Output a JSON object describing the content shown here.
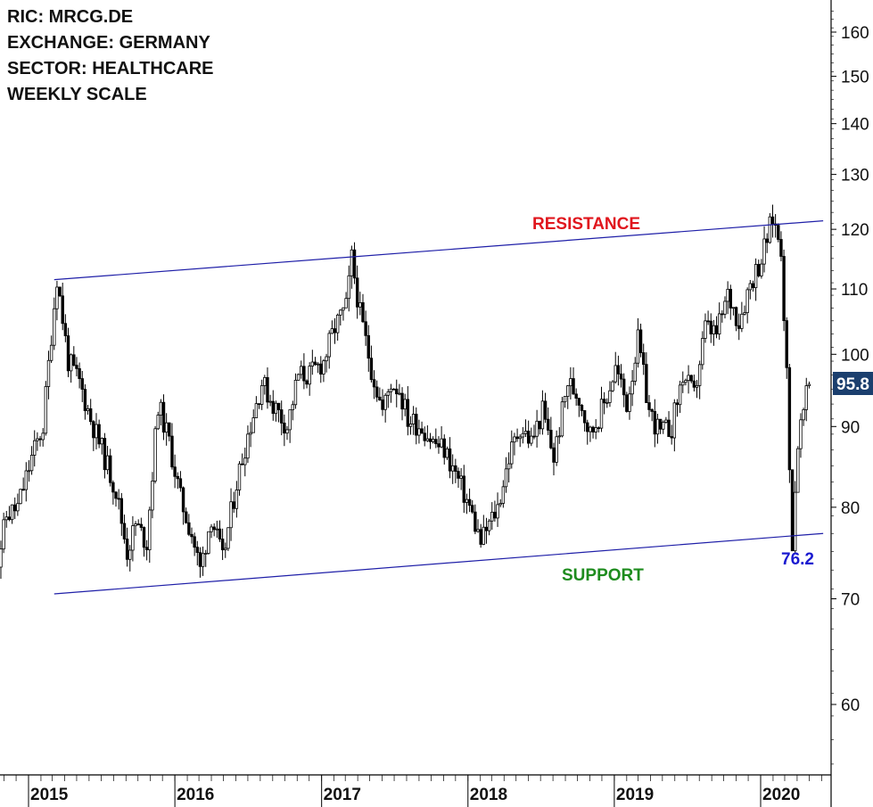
{
  "info": {
    "ric": "RIC: MRCG.DE",
    "exchange": "EXCHANGE: GERMANY",
    "sector": "SECTOR: HEALTHCARE",
    "scale": "WEEKLY SCALE"
  },
  "colors": {
    "candle": "#000000",
    "trendline": "#1f1fa8",
    "resistance_label": "#e0161d",
    "support_label": "#1e8c1e",
    "low_label": "#1a1ad0",
    "price_badge": "#1b3f6e"
  },
  "chart_data": {
    "type": "line",
    "series": [
      {
        "x": [
          "2014-10-03",
          "2014-11-07",
          "2014-12-05",
          "2015-01-09",
          "2015-02-06",
          "2015-02-27",
          "2015-03-13",
          "2015-04-10",
          "2015-05-08",
          "2015-06-05",
          "2015-07-03",
          "2015-08-07",
          "2015-09-04",
          "2015-09-25",
          "2015-10-23",
          "2015-11-20",
          "2015-12-18",
          "2016-01-15",
          "2016-02-12",
          "2016-03-04",
          "2016-04-01",
          "2016-04-29",
          "2016-06-03",
          "2016-07-01",
          "2016-08-05",
          "2016-09-02",
          "2016-10-07",
          "2016-11-04",
          "2016-12-02",
          "2017-01-06",
          "2017-02-03",
          "2017-03-03",
          "2017-03-17",
          "2017-04-07",
          "2017-05-05",
          "2017-06-02",
          "2017-06-23",
          "2017-07-14",
          "2017-08-04",
          "2017-09-08",
          "2017-10-06",
          "2017-11-03",
          "2017-12-01",
          "2018-01-05",
          "2018-02-02",
          "2018-02-23",
          "2018-03-16",
          "2018-04-13",
          "2018-05-11",
          "2018-06-08",
          "2018-07-06",
          "2018-08-03",
          "2018-09-07",
          "2018-10-05",
          "2018-11-02",
          "2018-12-07",
          "2019-01-04",
          "2019-02-01",
          "2019-03-01",
          "2019-03-29",
          "2019-04-26",
          "2019-05-24",
          "2019-06-21",
          "2019-07-19",
          "2019-08-16",
          "2019-09-13",
          "2019-10-11",
          "2019-11-08",
          "2019-12-06",
          "2020-01-03",
          "2020-01-31",
          "2020-02-21",
          "2020-03-06",
          "2020-03-13",
          "2020-03-20",
          "2020-04-03",
          "2020-04-17",
          "2020-05-01"
        ],
        "y": [
          71,
          79,
          80,
          86,
          90,
          103,
          112,
          99,
          96,
          91,
          87,
          82,
          75,
          78,
          76,
          93,
          88,
          81,
          77,
          73,
          79,
          74,
          83,
          89,
          96,
          93,
          90,
          97,
          97,
          99,
          104,
          107,
          115,
          106,
          98,
          92,
          96,
          95,
          91,
          90,
          88,
          87,
          84,
          80,
          76,
          78,
          80,
          86,
          90,
          88,
          92,
          86,
          96,
          94,
          89,
          93,
          98,
          93,
          102,
          92,
          89,
          90,
          97,
          94,
          104,
          103,
          109,
          105,
          111,
          115,
          122,
          117,
          97,
          84,
          76.2,
          88,
          92,
          95.8
        ],
        "label_points": [
          {
            "x": "2020-03-20",
            "y": 76.2,
            "label": "76.2"
          }
        ]
      }
    ],
    "trendlines": [
      {
        "name": "RESISTANCE",
        "x1": "2015-03-06",
        "y1": 111.5,
        "x2": "2020-06-05",
        "y2": 121.5
      },
      {
        "name": "SUPPORT",
        "x1": "2015-03-06",
        "y1": 70.5,
        "x2": "2020-06-05",
        "y2": 77
      }
    ],
    "annotations": {
      "resistance": "RESISTANCE",
      "support": "SUPPORT",
      "low": "76.2",
      "last_price": "95.8"
    },
    "y_axis": {
      "position": "right",
      "scale": "log",
      "range": [
        53,
        170
      ],
      "ticks": [
        "60",
        "70",
        "80",
        "90",
        "100",
        "110",
        "120",
        "130",
        "140",
        "150",
        "160"
      ]
    },
    "x_axis": {
      "range": [
        "2014-09-26",
        "2020-06-19"
      ],
      "ticks": [
        "2015",
        "2016",
        "2017",
        "2018",
        "2019",
        "2020"
      ]
    },
    "grid": false
  }
}
